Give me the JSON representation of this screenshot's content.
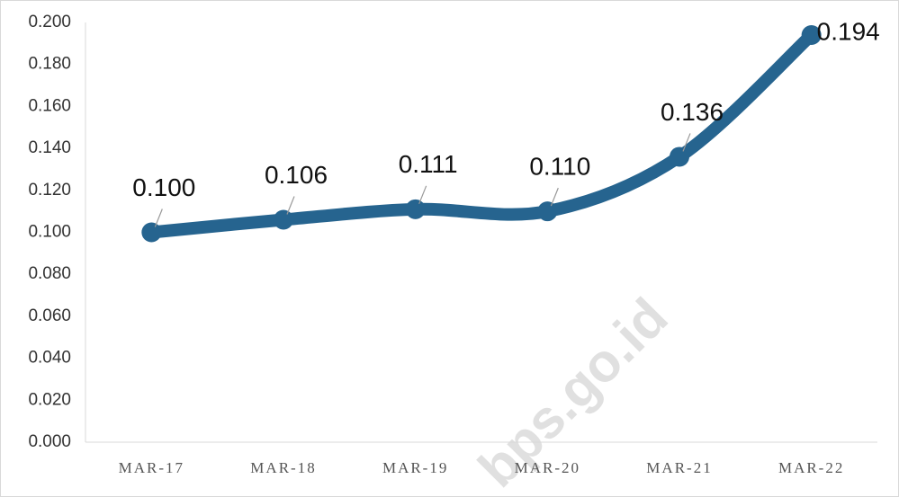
{
  "chart_data": {
    "type": "line",
    "categories": [
      "MAR-17",
      "MAR-18",
      "MAR-19",
      "MAR-20",
      "MAR-21",
      "MAR-22"
    ],
    "series": [
      {
        "color": "#26648f",
        "values": [
          0.1,
          0.106,
          0.111,
          0.11,
          0.136,
          0.194
        ],
        "value_labels": [
          "0.100",
          "0.106",
          "0.111",
          "0.110",
          "0.136",
          "0.194"
        ]
      }
    ],
    "ylim": [
      0,
      0.2
    ],
    "yticks": [
      {
        "value": 0,
        "label": "0.000"
      },
      {
        "value": 0.02,
        "label": "0.020"
      },
      {
        "value": 0.04,
        "label": "0.040"
      },
      {
        "value": 0.06,
        "label": "0.060"
      },
      {
        "value": 0.08,
        "label": "0.080"
      },
      {
        "value": 0.1,
        "label": "0.100"
      },
      {
        "value": 0.12,
        "label": "0.120"
      },
      {
        "value": 0.14,
        "label": "0.140"
      },
      {
        "value": 0.16,
        "label": "0.160"
      },
      {
        "value": 0.18,
        "label": "0.180"
      },
      {
        "value": 0.2,
        "label": "0.200"
      }
    ],
    "grid": false,
    "watermark": "bps.go.id"
  }
}
